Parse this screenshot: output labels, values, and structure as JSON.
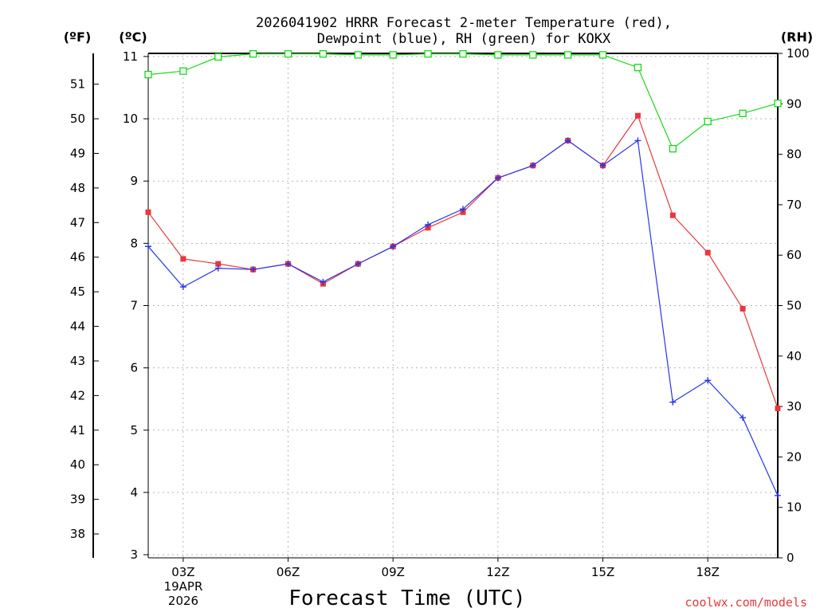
{
  "chart_data": {
    "type": "line",
    "title": [
      "2026041902 HRRR Forecast 2-meter Temperature (red),",
      "Dewpoint (blue), RH (green) for KOKX"
    ],
    "xlabel": "Forecast Time (UTC)",
    "hours": [
      2,
      3,
      4,
      5,
      6,
      7,
      8,
      9,
      10,
      11,
      12,
      13,
      14,
      15,
      16,
      17,
      18,
      19,
      20
    ],
    "xlim": [
      2,
      20
    ],
    "x_ticks": [
      {
        "hour": 3,
        "label": "03Z"
      },
      {
        "hour": 6,
        "label": "06Z"
      },
      {
        "hour": 9,
        "label": "09Z"
      },
      {
        "hour": 12,
        "label": "12Z"
      },
      {
        "hour": 15,
        "label": "15Z"
      },
      {
        "hour": 18,
        "label": "18Z"
      }
    ],
    "date_label": [
      "19APR",
      "2026"
    ],
    "y_left_c": {
      "label": "(ºC)",
      "lim": [
        2.95,
        11.05
      ],
      "ticks": [
        "3",
        "4",
        "5",
        "6",
        "7",
        "8",
        "9",
        "10",
        "11"
      ]
    },
    "y_left_f": {
      "label": "(ºF)",
      "ticks": [
        "38",
        "39",
        "40",
        "41",
        "42",
        "43",
        "44",
        "45",
        "46",
        "47",
        "48",
        "49",
        "50",
        "51"
      ]
    },
    "y_right_rh": {
      "label": "(RH)",
      "lim": [
        0,
        100
      ],
      "ticks": [
        "0",
        "10",
        "20",
        "30",
        "40",
        "50",
        "60",
        "70",
        "80",
        "90",
        "100"
      ]
    },
    "series": [
      {
        "name": "Temperature",
        "unit": "C",
        "color": "#e8383d",
        "marker": "filled-square",
        "values": [
          8.5,
          7.75,
          7.67,
          7.58,
          7.67,
          7.35,
          7.67,
          7.95,
          8.25,
          8.5,
          9.05,
          9.25,
          9.65,
          9.25,
          10.05,
          8.45,
          7.85,
          6.95,
          5.35
        ]
      },
      {
        "name": "Dewpoint",
        "unit": "C",
        "color": "#2a35e8",
        "marker": "plus",
        "values": [
          7.95,
          7.3,
          7.6,
          7.58,
          7.67,
          7.38,
          7.67,
          7.95,
          8.3,
          8.55,
          9.05,
          9.25,
          9.65,
          9.25,
          9.65,
          5.45,
          5.8,
          5.2,
          3.95
        ]
      },
      {
        "name": "RH",
        "unit": "%",
        "color": "#18d818",
        "marker": "open-square",
        "values": [
          95.8,
          96.5,
          99.3,
          99.9,
          99.9,
          99.9,
          99.7,
          99.7,
          99.9,
          99.9,
          99.7,
          99.7,
          99.7,
          99.7,
          97.2,
          81.1,
          86.5,
          88.1,
          90.1
        ]
      }
    ]
  },
  "credit": {
    "text": "coolwx.com/models",
    "color": "#e8383d"
  }
}
